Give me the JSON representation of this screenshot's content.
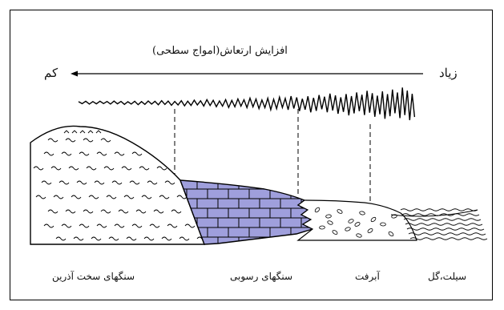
{
  "diagram": {
    "title": "افزایش ارتعاش(امواج سطحی)",
    "scale_low": "کم",
    "scale_high": "زیاد",
    "zones": [
      {
        "key": "hard",
        "label": "سنگهای سخت آذرین"
      },
      {
        "key": "sedimentary",
        "label": "سنگهای رسوبی"
      },
      {
        "key": "alluvium",
        "label": "آبرفت"
      },
      {
        "key": "silt",
        "label": "سیلت،گل"
      }
    ],
    "colors": {
      "sedimentary_fill": "#9f9fdc",
      "line": "#000000"
    }
  }
}
